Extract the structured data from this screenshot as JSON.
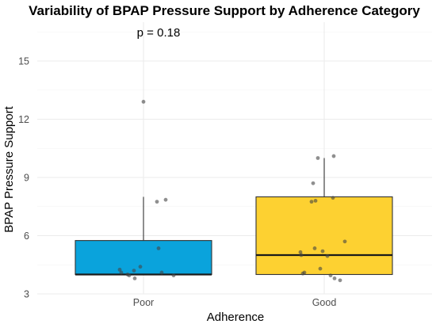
{
  "chart_data": {
    "type": "box",
    "title": "Variability of BPAP Pressure Support by Adherence Category",
    "xlabel": "Adherence",
    "ylabel": "BPAP Pressure Support",
    "categories": [
      "Poor",
      "Good"
    ],
    "ylim": [
      3,
      17
    ],
    "yticks": [
      3,
      6,
      9,
      12,
      15
    ],
    "yticks_labels": [
      "3",
      "6",
      "9",
      "12",
      "15"
    ],
    "annotation": "p = 0.18",
    "grid": true,
    "legend": "none",
    "colors": {
      "Poor": "#0aa3dc",
      "Good": "#fdd131",
      "points": "#444444"
    },
    "boxes": [
      {
        "category": "Poor",
        "min": 4,
        "q1": 4,
        "median": 4,
        "q3": 5.75,
        "max": 8
      },
      {
        "category": "Good",
        "min": 4,
        "q1": 4,
        "median": 5,
        "q3": 8,
        "max": 10
      }
    ],
    "points": [
      {
        "category": "Poor",
        "values": [
          12.9,
          7.85,
          7.75,
          5.35,
          4.4,
          4.25,
          4.2,
          4.1,
          4.1,
          4.0,
          3.95,
          3.95,
          3.8
        ]
      },
      {
        "category": "Good",
        "values": [
          10.1,
          10.0,
          8.7,
          7.95,
          7.8,
          7.75,
          5.7,
          5.35,
          5.2,
          5.15,
          5.0,
          4.95,
          4.3,
          4.1,
          4.05,
          3.95,
          3.8,
          3.7
        ]
      }
    ]
  }
}
